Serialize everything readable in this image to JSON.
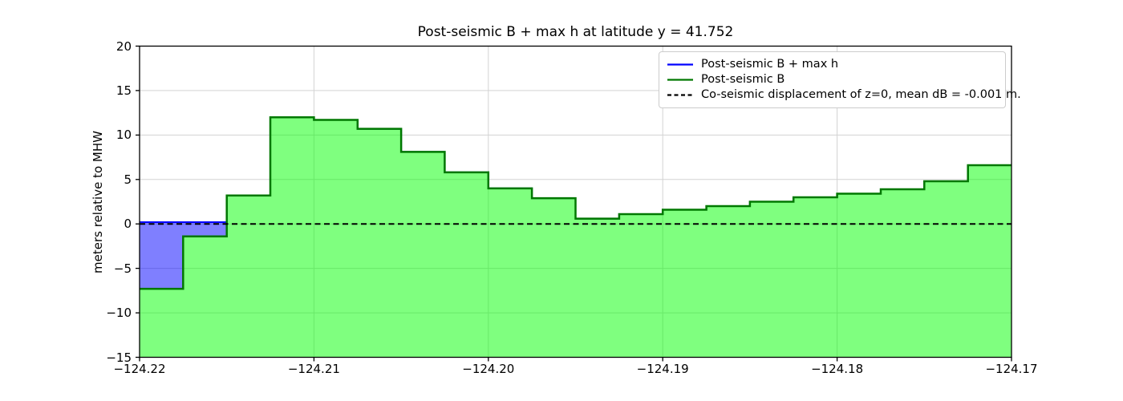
{
  "chart_data": {
    "type": "area",
    "title": "Post-seismic B + max h at latitude y = 41.752",
    "xlabel": "",
    "ylabel": "meters relative to MHW",
    "xlim": [
      -124.22,
      -124.17
    ],
    "ylim": [
      -15,
      20
    ],
    "grid": true,
    "legend_position": "upper right",
    "xticks": [
      {
        "v": -124.22,
        "label": "−124.22"
      },
      {
        "v": -124.21,
        "label": "−124.21"
      },
      {
        "v": -124.2,
        "label": "−124.20"
      },
      {
        "v": -124.19,
        "label": "−124.19"
      },
      {
        "v": -124.18,
        "label": "−124.18"
      },
      {
        "v": -124.17,
        "label": "−124.17"
      }
    ],
    "yticks": [
      {
        "v": -15,
        "label": "−15"
      },
      {
        "v": -10,
        "label": "−10"
      },
      {
        "v": -5,
        "label": "−5"
      },
      {
        "v": 0,
        "label": "0"
      },
      {
        "v": 5,
        "label": "5"
      },
      {
        "v": 10,
        "label": "10"
      },
      {
        "v": 15,
        "label": "15"
      },
      {
        "v": 20,
        "label": "20"
      }
    ],
    "step_edges": [
      -124.22,
      -124.2175,
      -124.215,
      -124.2125,
      -124.21,
      -124.2075,
      -124.205,
      -124.2025,
      -124.2,
      -124.1975,
      -124.195,
      -124.1925,
      -124.19,
      -124.1875,
      -124.185,
      -124.1825,
      -124.18,
      -124.1775,
      -124.175,
      -124.1725,
      -124.17
    ],
    "series": [
      {
        "name": "Post-seismic B + max h",
        "color": "#0000ff",
        "fill": "#0000ff",
        "fill_opacity": 0.5,
        "line_width": 2,
        "values": [
          0.2,
          0.2,
          3.2,
          12.0,
          11.7,
          10.7,
          8.1,
          5.8,
          4.0,
          2.9,
          0.6,
          1.1,
          1.6,
          2.0,
          2.5,
          3.0,
          3.4,
          3.9,
          4.8,
          6.6
        ]
      },
      {
        "name": "Post-seismic B",
        "color": "#007800",
        "fill": "#00ff00",
        "fill_opacity": 0.5,
        "line_width": 2.5,
        "values": [
          -7.3,
          -1.4,
          3.2,
          12.0,
          11.7,
          10.7,
          8.1,
          5.8,
          4.0,
          2.9,
          0.6,
          1.1,
          1.6,
          2.0,
          2.5,
          3.0,
          3.4,
          3.9,
          4.8,
          6.6
        ]
      }
    ],
    "hline": {
      "name": "Co-seismic displacement of z=0, mean dB = -0.001 m.",
      "y": 0,
      "color": "#000000",
      "style": "dashed",
      "line_width": 2
    },
    "legend": [
      {
        "label": "Post-seismic B + max h",
        "color": "#0000ff",
        "dash": false
      },
      {
        "label": "Post-seismic B",
        "color": "#007800",
        "dash": false
      },
      {
        "label": "Co-seismic displacement of z=0, mean dB = -0.001 m.",
        "color": "#000000",
        "dash": true
      }
    ],
    "colors": {
      "grid": "#d3d3d3",
      "spine": "#000000",
      "text": "#000000",
      "green_fill_rendered": "#80ff80",
      "blue_fill_rendered": "#8080ff"
    }
  }
}
